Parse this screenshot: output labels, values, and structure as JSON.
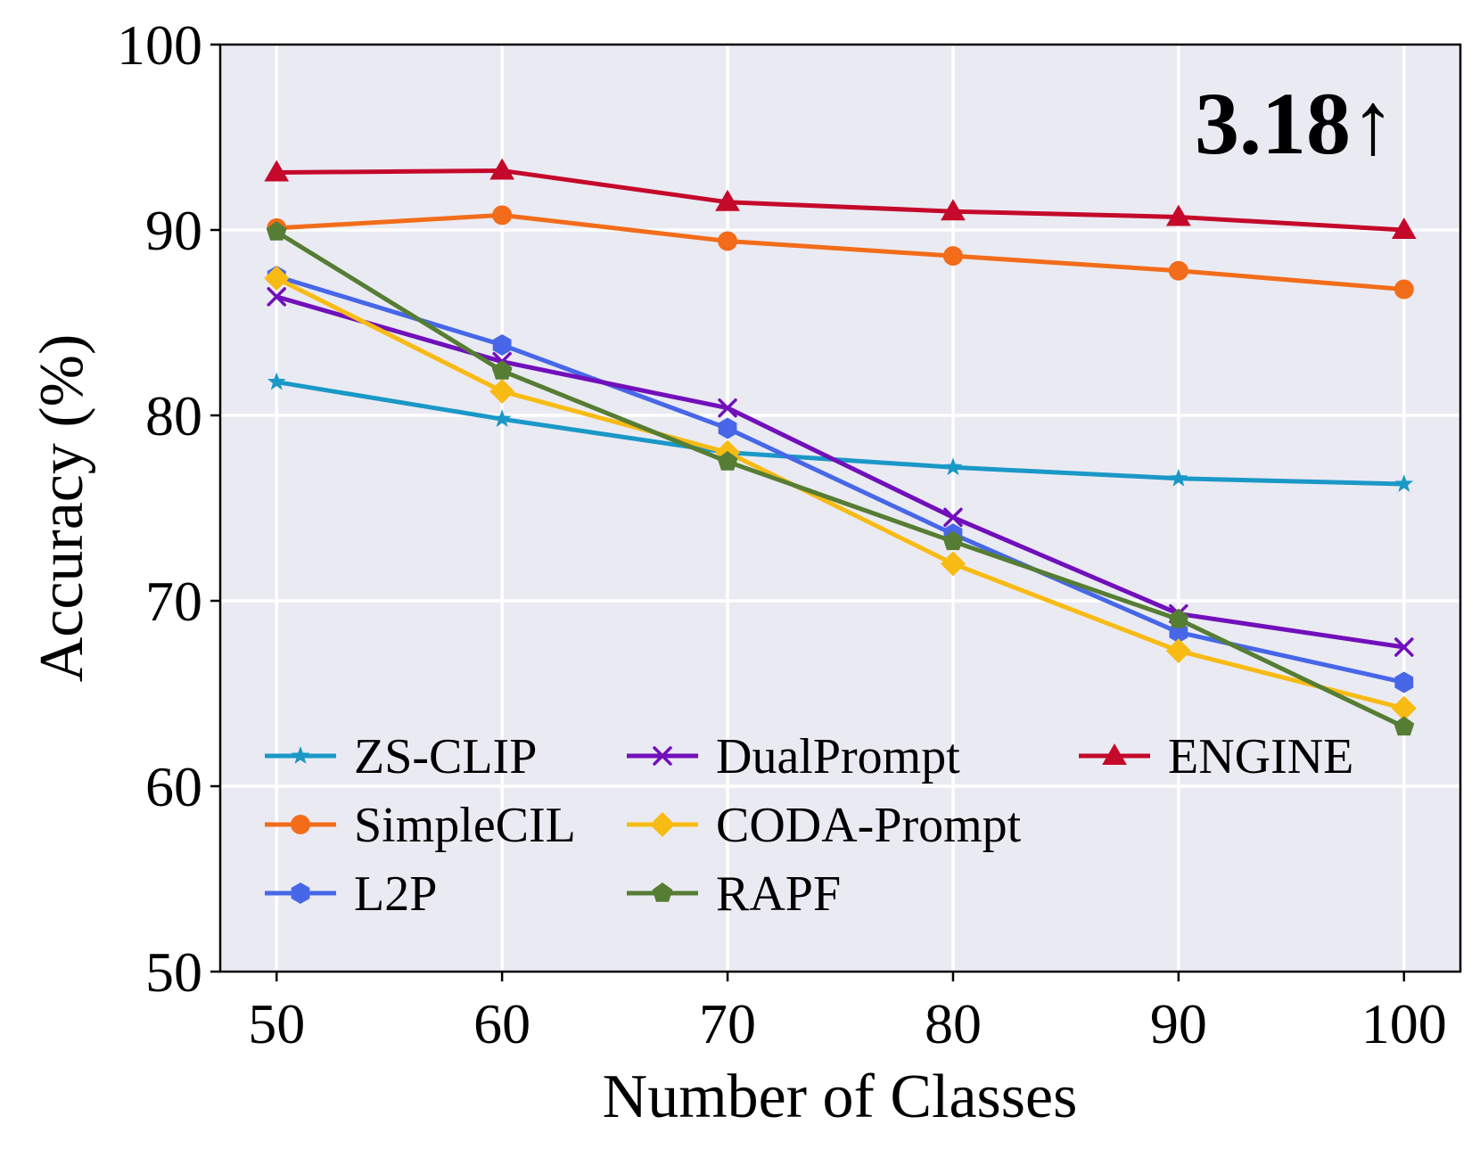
{
  "chart_data": {
    "type": "line",
    "title": "",
    "xlabel": "Number of Classes",
    "ylabel": "Accuracy (%)",
    "x": [
      50,
      60,
      70,
      80,
      90,
      100
    ],
    "xticks": [
      "50",
      "60",
      "70",
      "80",
      "90",
      "100"
    ],
    "yticks": [
      "50",
      "60",
      "70",
      "80",
      "90",
      "100"
    ],
    "xlim": [
      47.5,
      102.5
    ],
    "ylim": [
      50,
      100
    ],
    "grid": true,
    "annotation": "3.18↑",
    "legend_placement": "lower-left",
    "series": [
      {
        "name": "ZS-CLIP",
        "color": "#1a98c7",
        "marker": "star",
        "values": [
          81.8,
          79.8,
          78.0,
          77.2,
          76.6,
          76.3
        ]
      },
      {
        "name": "SimpleCIL",
        "color": "#f26c1a",
        "marker": "circle",
        "values": [
          90.1,
          90.8,
          89.4,
          88.6,
          87.8,
          86.8
        ]
      },
      {
        "name": "L2P",
        "color": "#4767e8",
        "marker": "hexagon",
        "values": [
          87.5,
          83.8,
          79.3,
          73.6,
          68.3,
          65.6
        ]
      },
      {
        "name": "DualPrompt",
        "color": "#7110bb",
        "marker": "x",
        "values": [
          86.4,
          82.9,
          80.4,
          74.5,
          69.3,
          67.5
        ]
      },
      {
        "name": "CODA-Prompt",
        "color": "#f7bb14",
        "marker": "diamond",
        "values": [
          87.4,
          81.3,
          78.0,
          72.0,
          67.3,
          64.2
        ]
      },
      {
        "name": "RAPF",
        "color": "#567d34",
        "marker": "pentagon",
        "values": [
          89.9,
          82.4,
          77.5,
          73.2,
          69.0,
          63.2
        ]
      },
      {
        "name": "ENGINE",
        "color": "#c4092a",
        "marker": "triangle",
        "values": [
          93.1,
          93.2,
          91.5,
          91.0,
          90.7,
          90.0
        ]
      }
    ]
  }
}
